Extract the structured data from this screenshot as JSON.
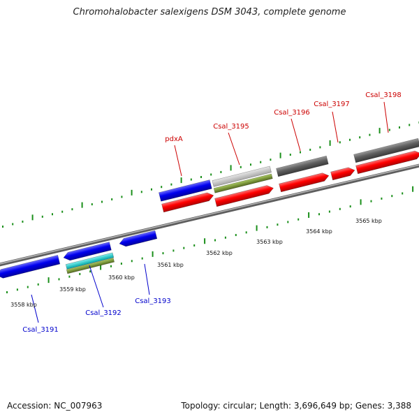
{
  "title": "Chromohalobacter salexigens DSM 3043, complete genome",
  "accession": "Accession: NC_007963",
  "summary": "Topology: circular; Length: 3,696,649 bp; Genes: 3,388",
  "colors": {
    "forward_label": "#cc0000",
    "reverse_label": "#0000cc",
    "cds_forward": "#ff0000",
    "cds_reverse": "#0000ff",
    "gene_gray": "#555555",
    "light_gray": "#bbbbbb",
    "olive": "#6b8e23",
    "cyan": "#00cccc",
    "ticks": "#1a8f1a",
    "backbone": "#8a8a8a"
  },
  "scale_labels": [
    "3558 kbp",
    "3559 kbp",
    "3560 kbp",
    "3561 kbp",
    "3562 kbp",
    "3563 kbp",
    "3564 kbp",
    "3565 kbp"
  ],
  "forward_genes": [
    "pdxA",
    "Csal_3195",
    "Csal_3196",
    "Csal_3197",
    "Csal_3198"
  ],
  "reverse_genes": [
    "Csal_3191",
    "Csal_3192",
    "Csal_3193"
  ]
}
